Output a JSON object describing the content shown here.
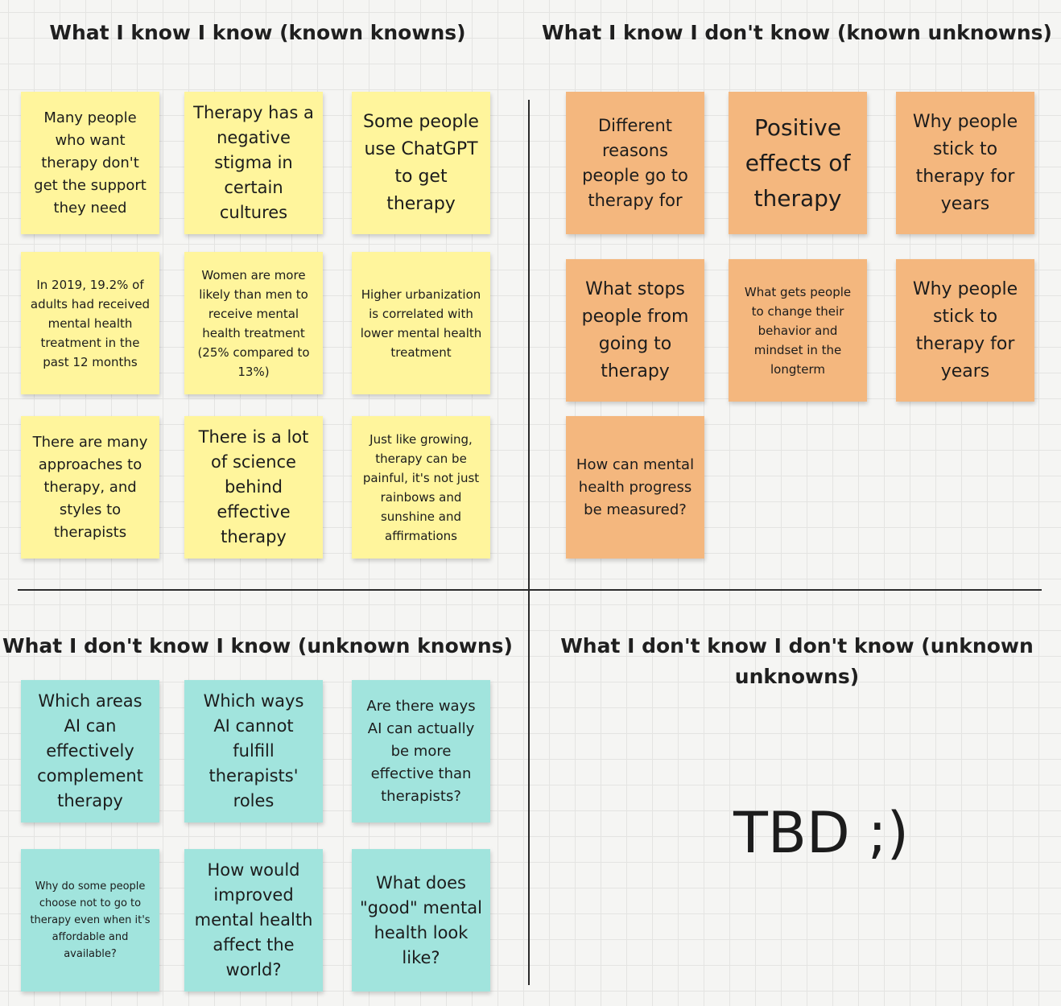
{
  "quadrants": {
    "known_knowns": {
      "title": "What I know I know (known knowns)",
      "notes": [
        "Many people who want therapy don't get the support they need",
        "Therapy has a negative stigma in certain cultures",
        "Some people use ChatGPT to get therapy",
        "In 2019, 19.2% of adults had received mental health treatment in the past 12 months",
        "Women are more likely than men to receive mental health treatment (25% compared to 13%)",
        "Higher urbanization is correlated with lower mental health treatment",
        "There are many approaches to therapy, and styles to therapists",
        "There is a lot of science behind effective therapy",
        "Just like growing, therapy can be painful, it's not just rainbows and sunshine and affirmations"
      ]
    },
    "known_unknowns": {
      "title": "What I know I don't know (known unknowns)",
      "notes": [
        "Different reasons people go to therapy for",
        "Positive effects of therapy",
        "Why people stick to therapy for years",
        "What stops people from going to therapy",
        "What gets people to change their behavior and mindset in the longterm",
        "Why people stick to therapy for years",
        "How can mental health progress be measured?"
      ]
    },
    "unknown_knowns": {
      "title": "What I don't know I know (unknown knowns)",
      "notes": [
        "Which areas AI can effectively complement therapy",
        "Which ways AI cannot fulfill therapists' roles",
        "Are there ways AI can actually be more effective than therapists?",
        "Why do some people choose not to go to therapy even when it's affordable and available?",
        "How would improved mental health affect the world?",
        "What does \"good\" mental health look like?"
      ]
    },
    "unknown_unknowns": {
      "title": "What I don't know I don't know (unknown unknowns)",
      "content": "TBD ;)"
    }
  },
  "colors": {
    "known_knowns": "#fff59c",
    "known_unknowns": "#f4b77e",
    "unknown_knowns": "#a1e4dd"
  }
}
